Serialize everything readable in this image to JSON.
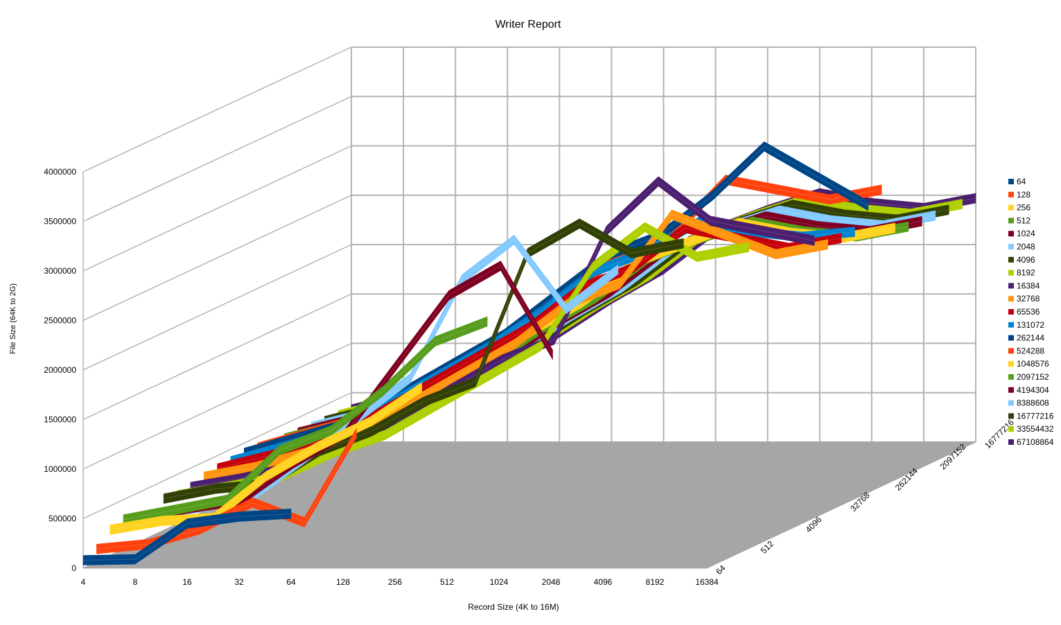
{
  "chart_data": {
    "type": "line",
    "title": "Writer Report",
    "xlabel": "Record Size (4K to 16M)",
    "ylabel": "File Size (64K to 2G)",
    "ylim": [
      0,
      4000000
    ],
    "y_ticks": [
      "0",
      "500000",
      "1000000",
      "1500000",
      "2000000",
      "2500000",
      "3000000",
      "3500000",
      "4000000"
    ],
    "x_ticks": [
      "4",
      "8",
      "16",
      "32",
      "64",
      "128",
      "256",
      "512",
      "1024",
      "2048",
      "4096",
      "8192",
      "16384"
    ],
    "z_ticks": [
      "64",
      "512",
      "4096",
      "32768",
      "262144",
      "2097152",
      "16777216"
    ],
    "legend_position": "right",
    "grid": true,
    "series": [
      {
        "name": "64",
        "color": "#004586",
        "values": [
          80000,
          90000,
          450000,
          520000,
          550000
        ]
      },
      {
        "name": "128",
        "color": "#ff420e",
        "values": [
          130000,
          180000,
          330000,
          600000,
          400000,
          1300000
        ]
      },
      {
        "name": "256",
        "color": "#ffd320",
        "values": [
          260000,
          350000,
          380000,
          800000,
          1100000,
          1350000,
          1700000
        ]
      },
      {
        "name": "512",
        "color": "#579d1c",
        "values": [
          300000,
          400000,
          500000,
          1000000,
          1200000,
          1600000,
          2100000,
          2300000
        ]
      },
      {
        "name": "1024",
        "color": "#7e0021",
        "values": [
          250000,
          350000,
          430000,
          800000,
          1100000,
          1800000,
          2500000,
          2800000,
          1900000
        ]
      },
      {
        "name": "2048",
        "color": "#83caff",
        "values": [
          200000,
          300000,
          420000,
          800000,
          1200000,
          1600000,
          2600000,
          3000000,
          2300000,
          2700000
        ]
      },
      {
        "name": "4096",
        "color": "#314004",
        "values": [
          320000,
          420000,
          470000,
          800000,
          1000000,
          1300000,
          1500000,
          2800000,
          3100000,
          2800000,
          2900000
        ]
      },
      {
        "name": "8192",
        "color": "#aecf00",
        "values": [
          290000,
          380000,
          480000,
          720000,
          900000,
          1200000,
          1500000,
          1800000,
          2600000,
          3000000,
          2700000,
          2800000
        ]
      },
      {
        "name": "16384",
        "color": "#4b1f6f",
        "values": [
          310000,
          400000,
          520000,
          770000,
          980000,
          1300000,
          1600000,
          1800000,
          2900000,
          3400000,
          3000000,
          2900000,
          2800000
        ]
      },
      {
        "name": "32768",
        "color": "#ff950e",
        "values": [
          350000,
          450000,
          600000,
          850000,
          1100000,
          1400000,
          1700000,
          2100000,
          2300000,
          3000000,
          2800000,
          2600000,
          2700000
        ]
      },
      {
        "name": "65536",
        "color": "#c5000b",
        "values": [
          370000,
          500000,
          650000,
          900000,
          1200000,
          1500000,
          1800000,
          2200000,
          2400000,
          2800000,
          2700000,
          2600000,
          2700000
        ]
      },
      {
        "name": "131072",
        "color": "#0084d1",
        "values": [
          380000,
          520000,
          680000,
          950000,
          1250000,
          1550000,
          1900000,
          2300000,
          2500000,
          2800000,
          2700000,
          2650000,
          2700000
        ]
      },
      {
        "name": "262144",
        "color": "#004586",
        "values": [
          400000,
          550000,
          700000,
          1000000,
          1300000,
          1600000,
          2000000,
          2400000,
          2600000,
          3000000,
          3500000,
          3200000,
          2900000
        ]
      },
      {
        "name": "524288",
        "color": "#ff420e",
        "values": [
          390000,
          540000,
          690000,
          980000,
          1280000,
          1580000,
          1950000,
          2350000,
          2550000,
          3100000,
          3000000,
          2900000,
          3000000
        ]
      },
      {
        "name": "1048576",
        "color": "#ffd320",
        "values": [
          360000,
          500000,
          650000,
          900000,
          1150000,
          1500000,
          1800000,
          2200000,
          2400000,
          2600000,
          2500000,
          2450000,
          2550000
        ]
      },
      {
        "name": "2097152",
        "color": "#579d1c",
        "values": [
          355000,
          490000,
          640000,
          890000,
          1140000,
          1480000,
          1780000,
          2180000,
          2380000,
          2550000,
          2450000,
          2400000,
          2500000
        ]
      },
      {
        "name": "4194304",
        "color": "#7e0021",
        "values": [
          350000,
          480000,
          630000,
          880000,
          1130000,
          1470000,
          1770000,
          2170000,
          2370000,
          2540000,
          2440000,
          2390000,
          2490000
        ]
      },
      {
        "name": "8388608",
        "color": "#83caff",
        "values": [
          345000,
          475000,
          625000,
          875000,
          1125000,
          1465000,
          1765000,
          2165000,
          2365000,
          2535000,
          2435000,
          2385000,
          2485000
        ]
      },
      {
        "name": "16777216",
        "color": "#314004",
        "values": [
          340000,
          470000,
          620000,
          870000,
          1120000,
          1460000,
          1760000,
          2160000,
          2360000,
          2530000,
          2430000,
          2380000,
          2480000
        ]
      },
      {
        "name": "33554432",
        "color": "#aecf00",
        "values": [
          335000,
          465000,
          615000,
          865000,
          1115000,
          1455000,
          1755000,
          2155000,
          2355000,
          2525000,
          2425000,
          2375000,
          2475000
        ]
      },
      {
        "name": "67108864",
        "color": "#4b1f6f",
        "values": [
          330000,
          460000,
          610000,
          860000,
          1110000,
          1450000,
          1750000,
          2150000,
          2350000,
          2520000,
          2420000,
          2370000,
          2470000
        ]
      }
    ]
  }
}
